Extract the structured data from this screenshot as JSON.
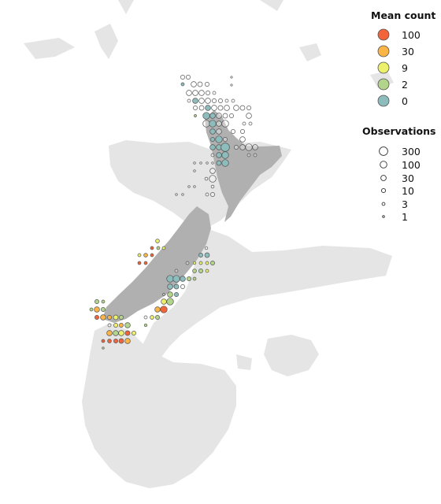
{
  "colors": {
    "background": "#ffffff",
    "land": "#e5e5e5",
    "nz": "#b0b0b0",
    "outline": "#555555",
    "bins": [
      "#f2643a",
      "#fbb446",
      "#edf06a",
      "#b2d48b",
      "#8dbcbc"
    ]
  },
  "legend_mean": {
    "title": "Mean count",
    "items": [
      {
        "label": "100",
        "color": "#f2643a"
      },
      {
        "label": "30",
        "color": "#fbb446"
      },
      {
        "label": "9",
        "color": "#edf06a"
      },
      {
        "label": "2",
        "color": "#b2d48b"
      },
      {
        "label": "0",
        "color": "#8dbcbc"
      }
    ]
  },
  "legend_obs": {
    "title": "Observations",
    "items": [
      {
        "label": "300",
        "value": 300
      },
      {
        "label": "100",
        "value": 100
      },
      {
        "label": "30",
        "value": 30
      },
      {
        "label": "10",
        "value": 10
      },
      {
        "label": "3",
        "value": 3
      },
      {
        "label": "1",
        "value": 1
      }
    ]
  }
}
